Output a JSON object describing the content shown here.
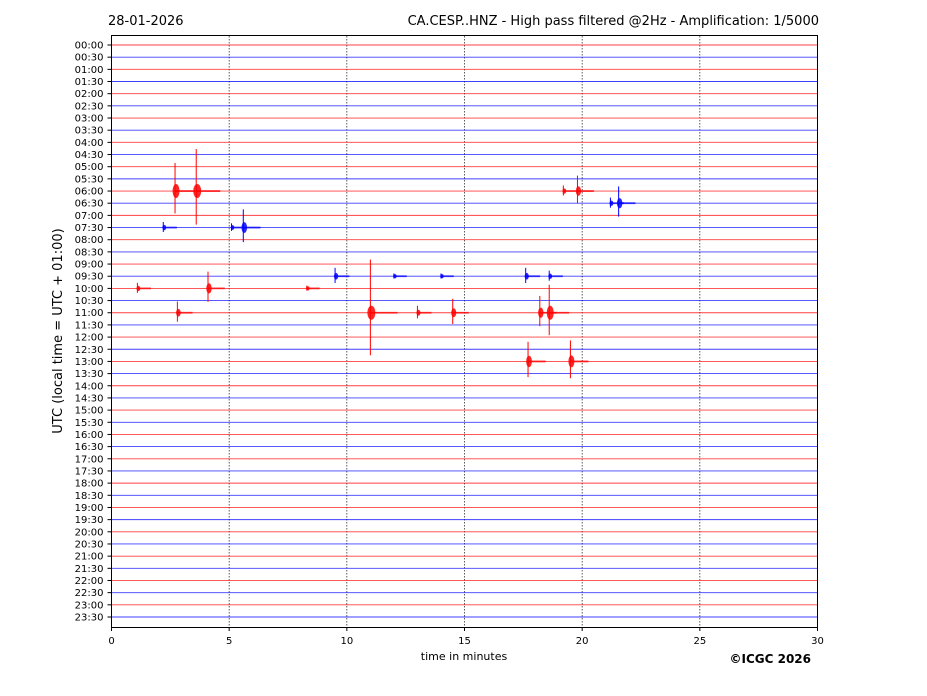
{
  "header": {
    "date": "28-01-2026",
    "title": "CA.CESP..HNZ - High pass filtered @2Hz - Amplification: 1/5000"
  },
  "footer": {
    "copyright": "©ICGC 2026"
  },
  "chart_data": {
    "type": "line",
    "title": "CA.CESP..HNZ - High pass filtered @2Hz - Amplification: 1/5000",
    "xlabel": "time in minutes",
    "ylabel": "UTC (local time = UTC + 01:00)",
    "xlim": [
      0,
      30
    ],
    "x_ticks": [
      "0",
      "5",
      "10",
      "15",
      "20",
      "25",
      "30"
    ],
    "grid": "vertical dotted every 5 minutes",
    "colors": [
      "#ff0000",
      "#0000ff"
    ],
    "rows": [
      "00:00",
      "00:30",
      "01:00",
      "01:30",
      "02:00",
      "02:30",
      "03:00",
      "03:30",
      "04:00",
      "04:30",
      "05:00",
      "05:30",
      "06:00",
      "06:30",
      "07:00",
      "07:30",
      "08:00",
      "08:30",
      "09:00",
      "09:30",
      "10:00",
      "10:30",
      "11:00",
      "11:30",
      "12:00",
      "12:30",
      "13:00",
      "13:30",
      "14:00",
      "14:30",
      "15:00",
      "15:30",
      "16:00",
      "16:30",
      "17:00",
      "17:30",
      "18:00",
      "18:30",
      "19:00",
      "19:30",
      "20:00",
      "20:30",
      "21:00",
      "21:30",
      "22:00",
      "22:30",
      "23:00",
      "23:30"
    ],
    "events": [
      {
        "row": "06:00",
        "minute": 2.7,
        "amp": 2.0
      },
      {
        "row": "06:00",
        "minute": 3.6,
        "amp": 3.0
      },
      {
        "row": "06:00",
        "minute": 19.2,
        "amp": 0.4
      },
      {
        "row": "06:00",
        "minute": 19.8,
        "amp": 1.1
      },
      {
        "row": "06:30",
        "minute": 21.2,
        "amp": 0.4
      },
      {
        "row": "06:30",
        "minute": 21.55,
        "amp": 1.2
      },
      {
        "row": "07:30",
        "minute": 2.2,
        "amp": 0.4
      },
      {
        "row": "07:30",
        "minute": 5.1,
        "amp": 0.3
      },
      {
        "row": "07:30",
        "minute": 5.6,
        "amp": 1.3
      },
      {
        "row": "09:30",
        "minute": 9.5,
        "amp": 0.6
      },
      {
        "row": "09:30",
        "minute": 17.6,
        "amp": 0.6
      },
      {
        "row": "09:30",
        "minute": 18.6,
        "amp": 0.4
      },
      {
        "row": "09:30",
        "minute": 12.0,
        "amp": 0.2
      },
      {
        "row": "09:30",
        "minute": 14.0,
        "amp": 0.2
      },
      {
        "row": "10:00",
        "minute": 1.1,
        "amp": 0.4
      },
      {
        "row": "10:00",
        "minute": 4.1,
        "amp": 1.2
      },
      {
        "row": "10:00",
        "minute": 8.3,
        "amp": 0.2
      },
      {
        "row": "11:00",
        "minute": 2.8,
        "amp": 0.8
      },
      {
        "row": "11:00",
        "minute": 11.0,
        "amp": 3.8
      },
      {
        "row": "11:00",
        "minute": 13.0,
        "amp": 0.5
      },
      {
        "row": "11:00",
        "minute": 14.5,
        "amp": 1.0
      },
      {
        "row": "11:00",
        "minute": 18.2,
        "amp": 1.2
      },
      {
        "row": "11:00",
        "minute": 18.6,
        "amp": 2.0
      },
      {
        "row": "13:00",
        "minute": 17.7,
        "amp": 1.4
      },
      {
        "row": "13:00",
        "minute": 19.5,
        "amp": 1.5
      }
    ]
  }
}
